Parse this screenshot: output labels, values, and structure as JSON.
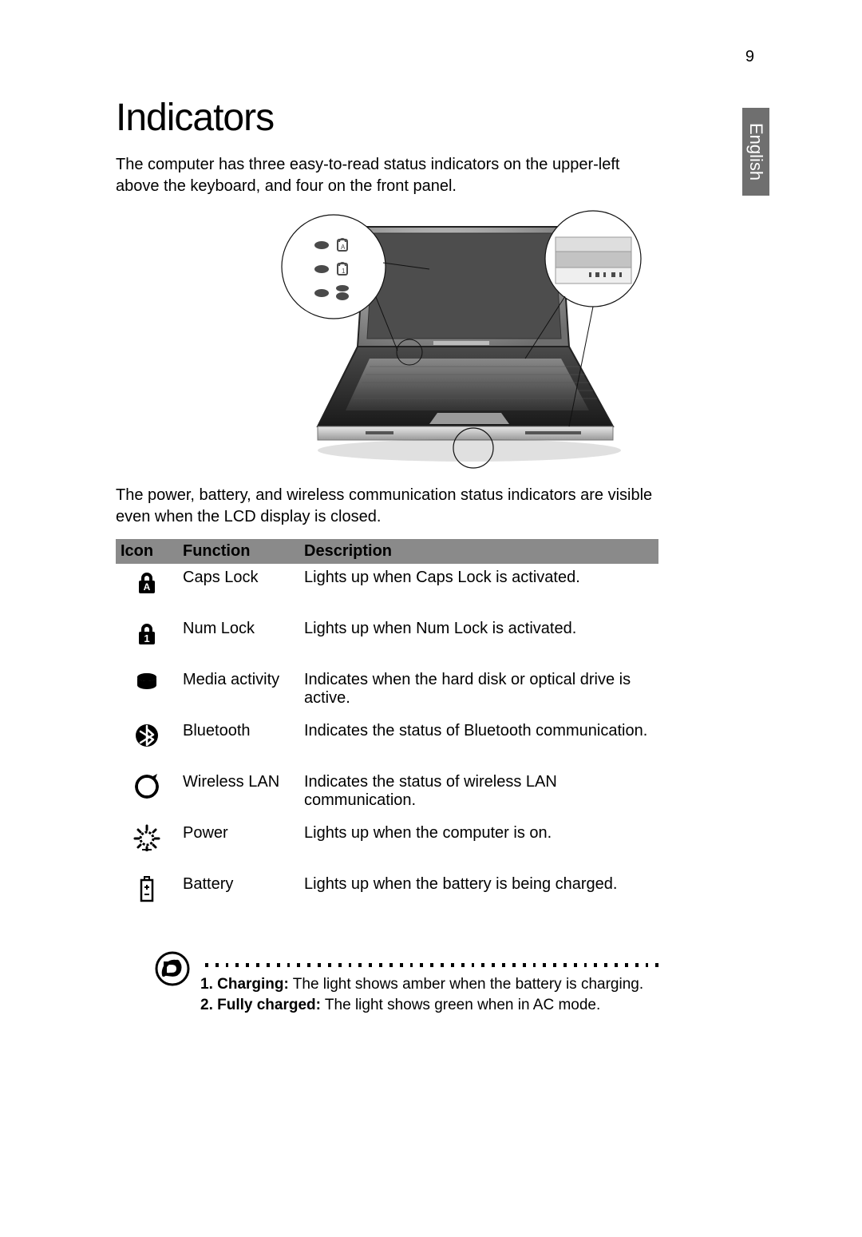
{
  "page_number": "9",
  "side_tab": "English",
  "heading": "Indicators",
  "intro": "The computer has three easy-to-read status indicators on the upper-left above the keyboard, and four on the front panel.",
  "mid_text": "The power, battery, and wireless communication status indicators are visible even when the LCD display is closed.",
  "table": {
    "headers": {
      "icon": "Icon",
      "function": "Function",
      "description": "Description"
    },
    "rows": [
      {
        "function": "Caps Lock",
        "description": "Lights up when Caps Lock is activated."
      },
      {
        "function": "Num Lock",
        "description": "Lights up when Num Lock is activated."
      },
      {
        "function": "Media activity",
        "description": "Indicates when the hard disk or optical drive is active."
      },
      {
        "function": "Bluetooth",
        "description": "Indicates the status of Bluetooth communication."
      },
      {
        "function": "Wireless LAN",
        "description": "Indicates the status of wireless LAN communication."
      },
      {
        "function": "Power",
        "description": "Lights up when the computer is on."
      },
      {
        "function": "Battery",
        "description": "Lights up when the battery is being charged."
      }
    ]
  },
  "note": {
    "line1_bold": "1. Charging:",
    "line1_rest": " The light shows amber when the battery is charging.",
    "line2_bold": "2. Fully charged:",
    "line2_rest": " The light shows green when in AC mode."
  },
  "style": {
    "header_bg": "#8a8a8a",
    "sidetab_bg": "#6f6f6f",
    "text_color": "#000000",
    "heading_fontsize": 48,
    "body_fontsize": 20,
    "note_fontsize": 19
  }
}
